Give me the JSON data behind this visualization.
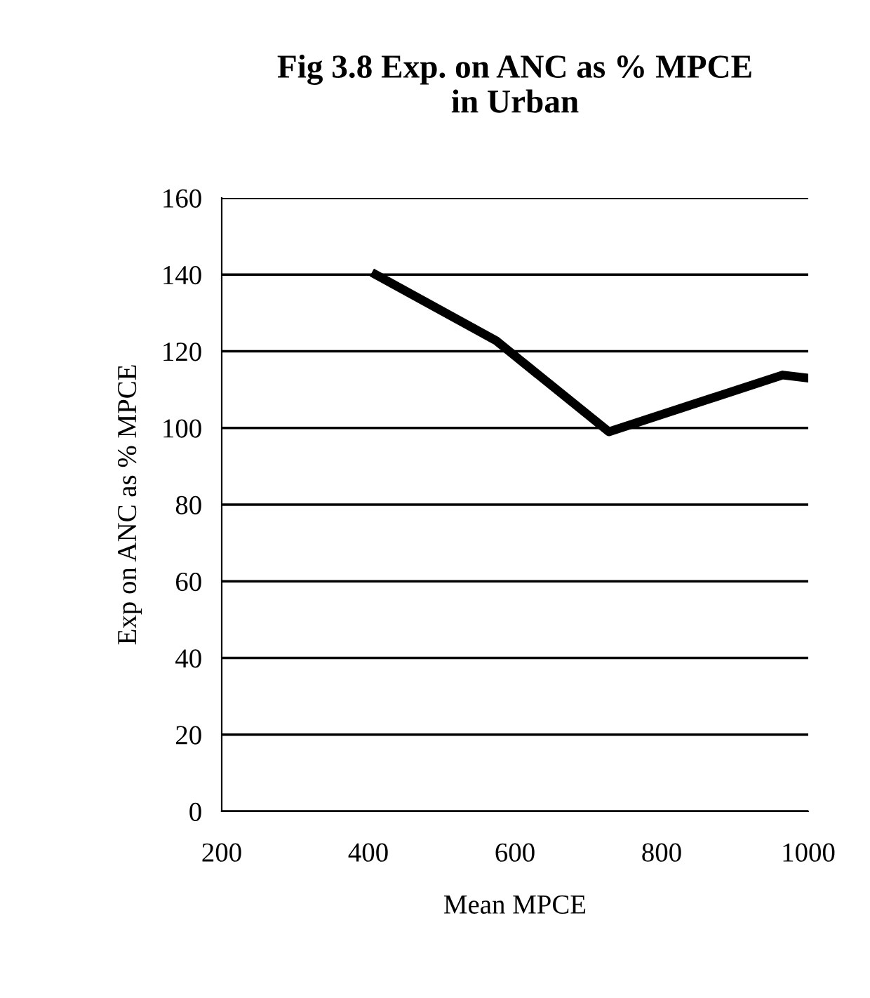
{
  "chart_data": {
    "type": "line",
    "title": "Fig 3.8 Exp. on ANC as % MPCE\nin Urban",
    "xlabel": "Mean MPCE",
    "ylabel": "Exp on ANC as % MPCE",
    "x": [
      410,
      574,
      728,
      965,
      1000
    ],
    "series": [
      {
        "color": "#000000",
        "values": [
          140,
          122.8,
          99,
          113.8,
          113
        ]
      }
    ],
    "xlim": [
      200,
      1000
    ],
    "xticks": [
      200,
      400,
      600,
      800,
      1000
    ],
    "ylim": [
      0,
      160
    ],
    "yticks": [
      0,
      20,
      40,
      60,
      80,
      100,
      120,
      140,
      160
    ],
    "grid": "y",
    "legend": false,
    "marker": "none",
    "line_style": "solid"
  }
}
